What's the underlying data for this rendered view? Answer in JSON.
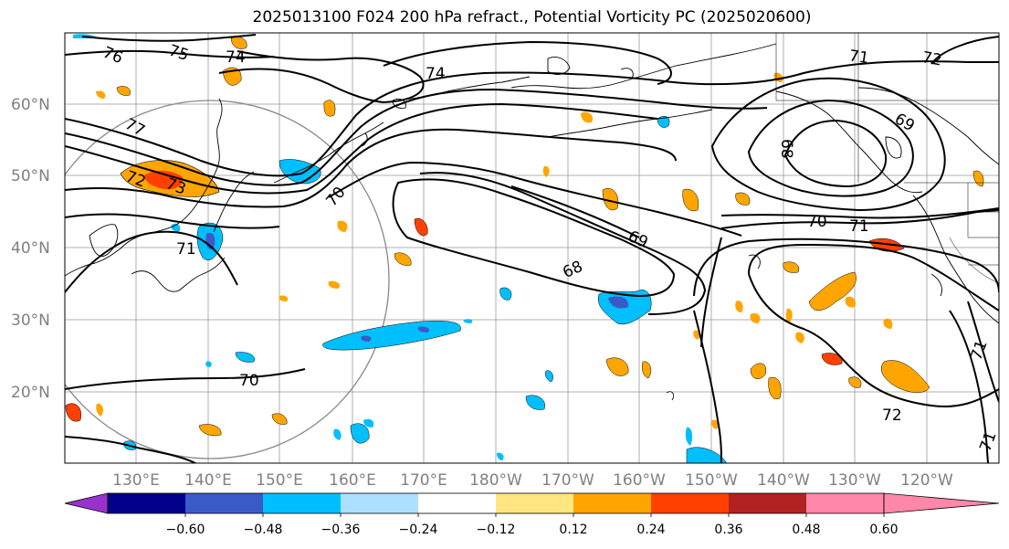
{
  "title": "2025013100 F024 200 hPa refract., Potential Vorticity PC (2025020600)",
  "lat_labels": [
    "60°N",
    "50°N",
    "40°N",
    "30°N",
    "20°N"
  ],
  "lon_labels": [
    "130°E",
    "140°E",
    "150°E",
    "160°E",
    "170°E",
    "180°W",
    "170°W",
    "160°W",
    "150°W",
    "140°W",
    "130°W",
    "120°W"
  ],
  "colorbar": {
    "ticks": [
      "−0.60",
      "−0.48",
      "−0.36",
      "−0.24",
      "−0.12",
      "0.12",
      "0.24",
      "0.36",
      "0.48",
      "0.60"
    ],
    "colors": [
      "#9932CC",
      "#00008B",
      "#3A5BC7",
      "#00BFFF",
      "#ADDFFF",
      "#FFFFFF",
      "#FFE680",
      "#FFA500",
      "#FF4000",
      "#B22222",
      "#FF88AA"
    ]
  },
  "contour_labels": [
    "76",
    "75",
    "74",
    "74",
    "71",
    "72",
    "77",
    "72",
    "73",
    "70",
    "71",
    "69",
    "68",
    "68",
    "69",
    "70",
    "71",
    "70",
    "72",
    "71",
    "71"
  ]
}
